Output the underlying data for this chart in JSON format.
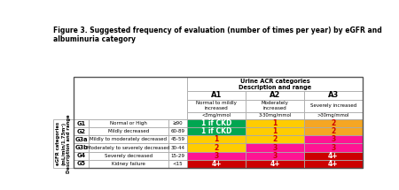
{
  "title": "Figure 3. Suggested frequency of evaluation (number of times per year) by eGFR and\nalbuminuria category",
  "col_header_top": "Urine ACR categories\nDescription and range",
  "col_headers": [
    "A1",
    "A2",
    "A3"
  ],
  "col_subheaders": [
    "Normal to mildly\nincreased",
    "Moderately\nincreased",
    "Severely increased"
  ],
  "col_ranges": [
    "<3mg/mmol",
    "3-30mg/mmol",
    ">30mg/mmol"
  ],
  "row_labels_g": [
    "G1",
    "G2",
    "G3a",
    "G3b",
    "G4",
    "G5"
  ],
  "row_labels_desc": [
    "Normal or High",
    "Mildly decreased",
    "Mildly to moderately decreased",
    "Moderately to severely decreased",
    "Severely decreased",
    "Kidney failure"
  ],
  "row_labels_range": [
    "≥90",
    "60-89",
    "45-59",
    "30-44",
    "15-29",
    "<15"
  ],
  "row_ylabel": "eGFR categories\n(mL/min/1.73m²)\nDescription and range",
  "cell_values": [
    [
      "1 if CKD",
      "1",
      "2"
    ],
    [
      "1 if CKD",
      "1",
      "2"
    ],
    [
      "1",
      "2",
      "3"
    ],
    [
      "2",
      "3",
      "3"
    ],
    [
      "3",
      "3",
      "4+"
    ],
    [
      "4+",
      "4+",
      "4+"
    ]
  ],
  "cell_colors": [
    [
      "#00a651",
      "#ffcc00",
      "#f5a623"
    ],
    [
      "#00a651",
      "#ffcc00",
      "#f5a623"
    ],
    [
      "#ffcc00",
      "#ffcc00",
      "#ff1493"
    ],
    [
      "#ffcc00",
      "#ff1493",
      "#ff1493"
    ],
    [
      "#ff1493",
      "#ff1493",
      "#cc0000"
    ],
    [
      "#cc0000",
      "#cc0000",
      "#cc0000"
    ]
  ],
  "cell_text_colors": [
    [
      "#ffffff",
      "#cc0000",
      "#cc0000"
    ],
    [
      "#ffffff",
      "#cc0000",
      "#cc0000"
    ],
    [
      "#cc0000",
      "#cc0000",
      "#cc0000"
    ],
    [
      "#cc0000",
      "#cc0000",
      "#cc0000"
    ],
    [
      "#cc0000",
      "#cc0000",
      "#ffffff"
    ],
    [
      "#ffffff",
      "#ffffff",
      "#ffffff"
    ]
  ],
  "background": "#ffffff",
  "border_color": "#aaaaaa",
  "title_fontsize": 5.5,
  "header_fontsize": 5.5,
  "cell_fontsize": 5.5,
  "label_fontsize": 4.5
}
